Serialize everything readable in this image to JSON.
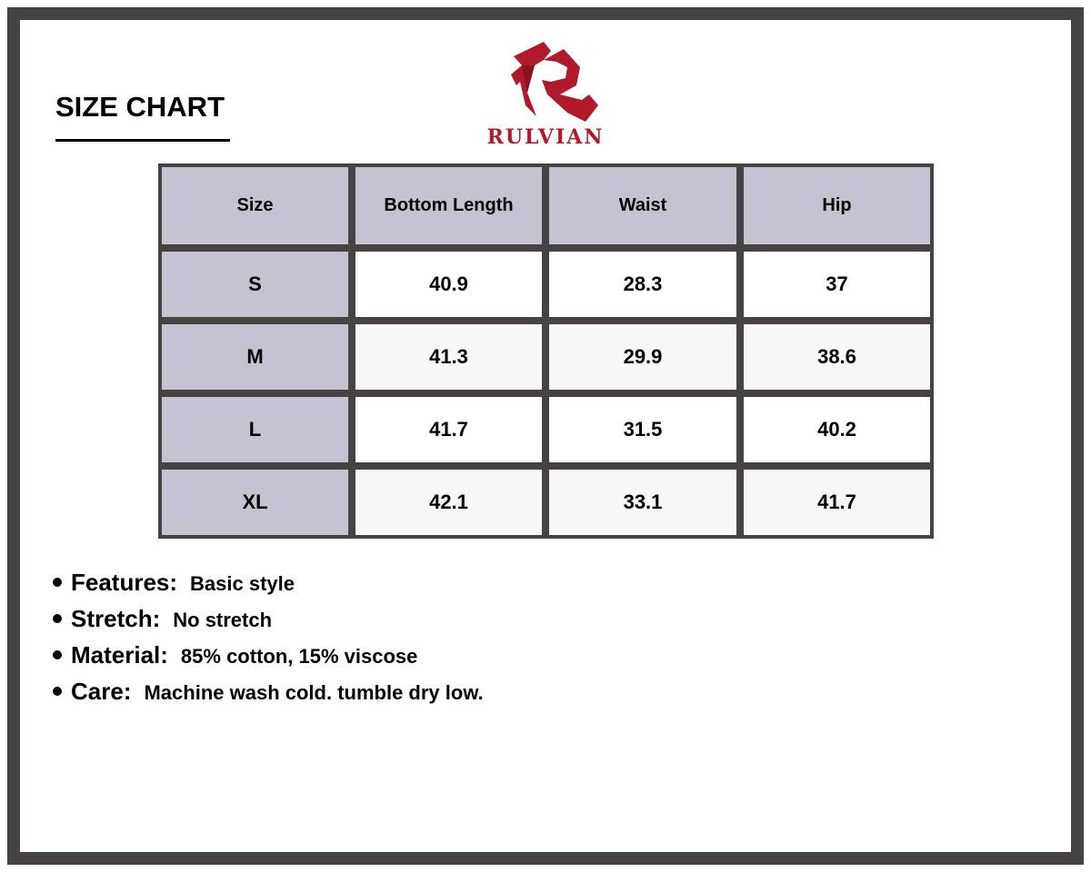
{
  "title": "SIZE CHART",
  "brand": {
    "name": "RULVIAN",
    "color": "#b01a2a"
  },
  "table": {
    "headers": [
      "Size",
      "Bottom Length",
      "Waist",
      "Hip"
    ],
    "rows": [
      [
        "S",
        "40.9",
        "28.3",
        "37"
      ],
      [
        "M",
        "41.3",
        "29.9",
        "38.6"
      ],
      [
        "L",
        "41.7",
        "31.5",
        "40.2"
      ],
      [
        "XL",
        "42.1",
        "33.1",
        "41.7"
      ]
    ]
  },
  "features": [
    {
      "label": "Features:",
      "value": "Basic style"
    },
    {
      "label": "Stretch:",
      "value": "No stretch"
    },
    {
      "label": "Material:",
      "value": "85% cotton, 15% viscose"
    },
    {
      "label": "Care:",
      "value": "Machine wash cold. tumble dry low."
    }
  ]
}
